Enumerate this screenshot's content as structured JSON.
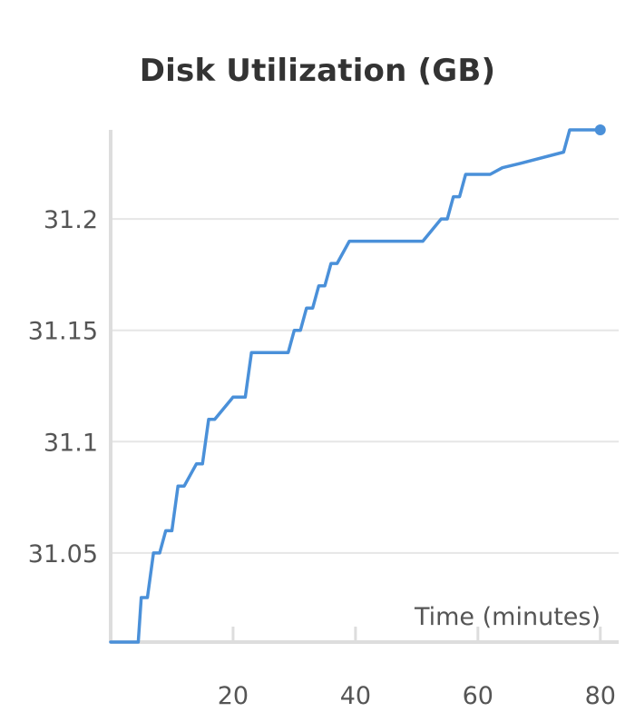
{
  "chart_data": {
    "type": "line",
    "title": "Disk Utilization (GB)",
    "xlabel": "Time (minutes)",
    "ylabel": "",
    "xlim": [
      0,
      83
    ],
    "ylim": [
      31.01,
      31.24
    ],
    "x_ticks": [
      20,
      40,
      60,
      80
    ],
    "y_ticks": [
      31.05,
      31.1,
      31.15,
      31.2
    ],
    "x_tick_labels": [
      "20",
      "40",
      "60",
      "80"
    ],
    "y_tick_labels": [
      "31.05",
      "31.1",
      "31.15",
      "31.2"
    ],
    "grid": "horizontal",
    "color": "#4a90d9",
    "series": [
      {
        "x": [
          0,
          4.5,
          5,
          6,
          7,
          8,
          9,
          10,
          11,
          12,
          14,
          15,
          16,
          17,
          20,
          22,
          23,
          29,
          30,
          31,
          32,
          33,
          34,
          35,
          36,
          37,
          39,
          40,
          46,
          51,
          54,
          55,
          56,
          57,
          58,
          59,
          62,
          64,
          67,
          74,
          75,
          76,
          80
        ],
        "y": [
          31.01,
          31.01,
          31.03,
          31.03,
          31.05,
          31.05,
          31.06,
          31.06,
          31.08,
          31.08,
          31.09,
          31.09,
          31.11,
          31.11,
          31.12,
          31.12,
          31.14,
          31.14,
          31.15,
          31.15,
          31.16,
          31.16,
          31.17,
          31.17,
          31.18,
          31.18,
          31.19,
          31.19,
          31.19,
          31.19,
          31.2,
          31.2,
          31.21,
          31.21,
          31.22,
          31.22,
          31.22,
          31.223,
          31.225,
          31.23,
          31.24,
          31.24,
          31.24
        ]
      }
    ]
  }
}
